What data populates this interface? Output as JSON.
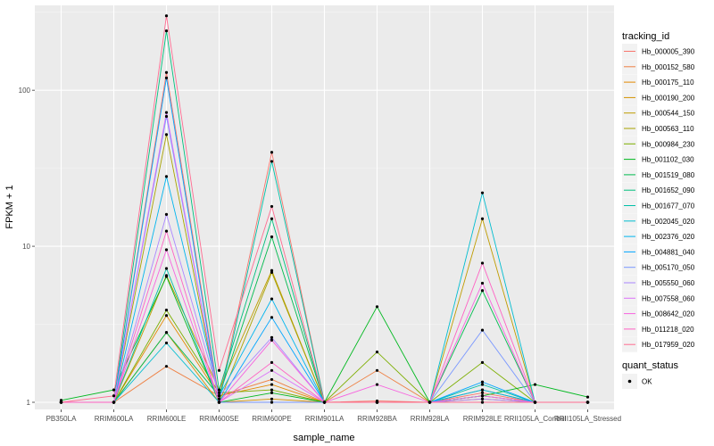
{
  "chart_data": {
    "type": "line",
    "xlabel": "sample_name",
    "ylabel": "FPKM + 1",
    "yscale": "log10",
    "ylim": [
      0.9,
      350
    ],
    "yticks": [
      {
        "value": 1,
        "label": "1"
      },
      {
        "value": 10,
        "label": "10"
      },
      {
        "value": 100,
        "label": "100"
      }
    ],
    "categories": [
      "PB350LA",
      "RRIM600LA",
      "RRIM600LE",
      "RRIM600SE",
      "RRIM600PE",
      "RRIM901LA",
      "RRIM928BA",
      "RRIM928LA",
      "RRIM928LE",
      "RRII105LA_Control",
      "RRII105LA_Stressed"
    ],
    "legend_title": "tracking_id",
    "series": [
      {
        "name": "Hb_000005_390",
        "color": "#F8766D",
        "values": [
          1.0,
          1.0,
          130,
          1.05,
          40,
          1.0,
          1.02,
          1.0,
          1.15,
          1.0,
          1.0
        ]
      },
      {
        "name": "Hb_000152_580",
        "color": "#EE8043",
        "values": [
          1.0,
          1.0,
          1.7,
          1.1,
          1.4,
          1.0,
          1.6,
          1.0,
          1.1,
          1.0,
          1.0
        ]
      },
      {
        "name": "Hb_000175_110",
        "color": "#E38900",
        "values": [
          1.0,
          1.0,
          3.6,
          1.1,
          1.3,
          1.0,
          1.0,
          1.0,
          1.05,
          1.0,
          1.0
        ]
      },
      {
        "name": "Hb_000190_200",
        "color": "#D39200",
        "values": [
          1.0,
          1.0,
          2.8,
          1.0,
          1.05,
          1.0,
          1.0,
          1.0,
          1.1,
          1.0,
          1.0
        ]
      },
      {
        "name": "Hb_000544_150",
        "color": "#BF9C00",
        "values": [
          1.0,
          1.0,
          6.5,
          1.2,
          7.0,
          1.0,
          1.0,
          1.0,
          15,
          1.0,
          1.0
        ]
      },
      {
        "name": "Hb_000563_110",
        "color": "#A8A300",
        "values": [
          1.0,
          1.0,
          52,
          1.0,
          6.8,
          1.0,
          1.0,
          1.0,
          1.2,
          1.0,
          1.0
        ]
      },
      {
        "name": "Hb_000984_230",
        "color": "#7CAE00",
        "values": [
          1.0,
          1.0,
          3.9,
          1.15,
          1.2,
          1.0,
          2.1,
          1.0,
          1.8,
          1.0,
          1.0
        ]
      },
      {
        "name": "Hb_001102_030",
        "color": "#00B81F",
        "values": [
          1.03,
          1.2,
          6.4,
          1.0,
          1.15,
          1.0,
          4.1,
          1.0,
          1.1,
          1.3,
          1.08
        ]
      },
      {
        "name": "Hb_001519_080",
        "color": "#00BB4E",
        "values": [
          1.0,
          1.0,
          2.8,
          1.1,
          11.5,
          1.0,
          1.0,
          1.0,
          5.2,
          1.0,
          1.0
        ]
      },
      {
        "name": "Hb_001652_090",
        "color": "#00BF7D",
        "values": [
          1.0,
          1.0,
          240,
          1.2,
          15,
          1.0,
          1.0,
          1.0,
          1.0,
          1.0,
          1.0
        ]
      },
      {
        "name": "Hb_001677_070",
        "color": "#00C0A8",
        "values": [
          1.0,
          1.0,
          7.2,
          1.0,
          35,
          1.0,
          1.0,
          1.0,
          1.3,
          1.0,
          1.0
        ]
      },
      {
        "name": "Hb_002045_020",
        "color": "#00BDD0",
        "values": [
          1.0,
          1.0,
          2.4,
          1.0,
          1.0,
          1.0,
          1.0,
          1.0,
          22,
          1.0,
          1.0
        ]
      },
      {
        "name": "Hb_002376_020",
        "color": "#00B5EE",
        "values": [
          1.0,
          1.0,
          28,
          1.1,
          4.6,
          1.0,
          1.0,
          1.0,
          1.2,
          1.0,
          1.0
        ]
      },
      {
        "name": "Hb_004881_040",
        "color": "#00A5FF",
        "values": [
          1.0,
          1.0,
          120,
          1.0,
          3.5,
          1.0,
          1.0,
          1.0,
          1.35,
          1.0,
          1.0
        ]
      },
      {
        "name": "Hb_005170_050",
        "color": "#7997FF",
        "values": [
          1.0,
          1.0,
          68,
          1.0,
          1.0,
          1.0,
          1.0,
          1.0,
          2.9,
          1.0,
          1.0
        ]
      },
      {
        "name": "Hb_005550_060",
        "color": "#AB87FF",
        "values": [
          1.0,
          1.0,
          16,
          1.1,
          2.6,
          1.0,
          1.0,
          1.0,
          1.05,
          1.0,
          1.0
        ]
      },
      {
        "name": "Hb_007558_060",
        "color": "#DC71FA",
        "values": [
          1.0,
          1.0,
          72,
          1.0,
          1.6,
          1.0,
          1.0,
          1.0,
          1.1,
          1.0,
          1.0
        ]
      },
      {
        "name": "Hb_008642_020",
        "color": "#F863DF",
        "values": [
          1.0,
          1.0,
          9.5,
          1.0,
          2.5,
          1.0,
          1.3,
          1.0,
          5.8,
          1.0,
          1.0
        ]
      },
      {
        "name": "Hb_011218_020",
        "color": "#FF61C3",
        "values": [
          1.0,
          1.0,
          12.5,
          1.0,
          1.8,
          1.0,
          1.0,
          1.0,
          7.8,
          1.0,
          1.0
        ]
      },
      {
        "name": "Hb_017959_020",
        "color": "#FF6C91",
        "values": [
          1.0,
          1.1,
          300,
          1.6,
          18,
          1.0,
          1.0,
          1.0,
          1.0,
          1.0,
          1.0
        ]
      }
    ],
    "shape_legend": {
      "title": "quant_status",
      "entries": [
        "OK"
      ]
    }
  }
}
